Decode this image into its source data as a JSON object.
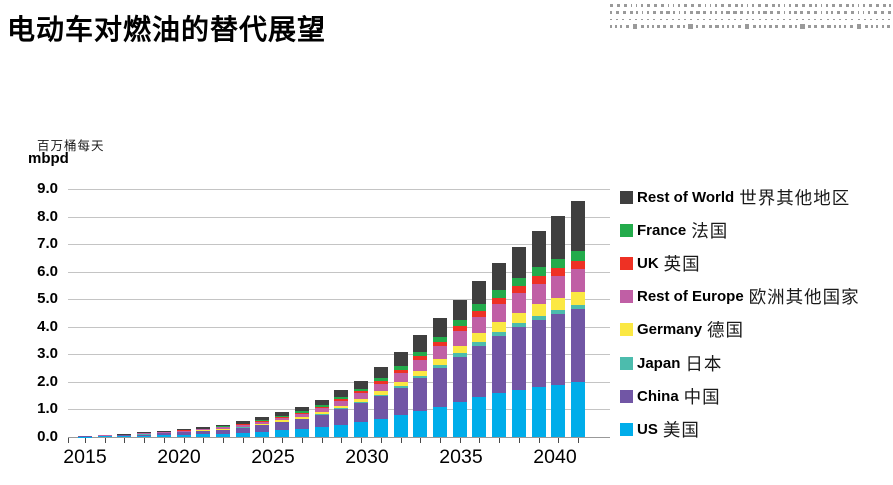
{
  "title": "电动车对燃油的替代展望",
  "y_axis": {
    "unit_cn": "百万桶每天",
    "unit_en": "mbpd",
    "ticks": [
      "9.0",
      "8.0",
      "7.0",
      "6.0",
      "5.0",
      "4.0",
      "3.0",
      "2.0",
      "1.0",
      "0.0"
    ]
  },
  "x_axis": {
    "labels": [
      "2015",
      "2020",
      "2025",
      "2030",
      "2035",
      "2040"
    ]
  },
  "legend": {
    "items": [
      {
        "en": "Rest of World",
        "cn": "世界其他地区",
        "color": "#3F3F3F"
      },
      {
        "en": "France",
        "cn": "法国",
        "color": "#23AB4B"
      },
      {
        "en": "UK",
        "cn": "英国",
        "color": "#EE3124"
      },
      {
        "en": "Rest of Europe",
        "cn": "欧洲其他国家",
        "color": "#C05FA5"
      },
      {
        "en": "Germany",
        "cn": "德国",
        "color": "#FBE843"
      },
      {
        "en": "Japan",
        "cn": "日本",
        "color": "#4CBCAD"
      },
      {
        "en": "China",
        "cn": "中国",
        "color": "#7156A5"
      },
      {
        "en": "US",
        "cn": "美国",
        "color": "#00ADEA"
      }
    ]
  },
  "colors": {
    "gridline": "#c4c4c4",
    "axis_line": "#999999",
    "tick": "#4a4a4a",
    "dots_decoration": "#9a9a9a",
    "text": "#000000"
  },
  "chart_data": {
    "type": "bar",
    "stacked": true,
    "title": "电动车对燃油的替代展望",
    "xlabel": "",
    "ylabel": "mbpd 百万桶每天",
    "ylim": [
      0,
      9.0
    ],
    "ytick_step": 1.0,
    "grid": true,
    "legend_position": "right",
    "x": [
      2015,
      2016,
      2017,
      2018,
      2019,
      2020,
      2021,
      2022,
      2023,
      2024,
      2025,
      2026,
      2027,
      2028,
      2029,
      2030,
      2031,
      2032,
      2033,
      2034,
      2035,
      2036,
      2037,
      2038,
      2039,
      2040
    ],
    "series": [
      {
        "name": "US 美国",
        "name_en": "US",
        "name_cn": "美国",
        "color": "#00ADEA",
        "values": [
          0.01,
          0.02,
          0.03,
          0.04,
          0.06,
          0.08,
          0.1,
          0.12,
          0.15,
          0.19,
          0.24,
          0.29,
          0.36,
          0.45,
          0.55,
          0.66,
          0.79,
          0.94,
          1.1,
          1.28,
          1.44,
          1.58,
          1.7,
          1.81,
          1.9,
          2.0
        ]
      },
      {
        "name": "China 中国",
        "name_en": "China",
        "name_cn": "中国",
        "color": "#7156A5",
        "values": [
          0.01,
          0.02,
          0.03,
          0.05,
          0.07,
          0.09,
          0.11,
          0.14,
          0.18,
          0.23,
          0.29,
          0.35,
          0.44,
          0.55,
          0.67,
          0.82,
          0.99,
          1.19,
          1.4,
          1.63,
          1.86,
          2.08,
          2.28,
          2.44,
          2.57,
          2.66
        ]
      },
      {
        "name": "Japan 日本",
        "name_en": "Japan",
        "name_cn": "日本",
        "color": "#4CBCAD",
        "values": [
          0.0,
          0.0,
          0.0,
          0.01,
          0.01,
          0.01,
          0.01,
          0.01,
          0.02,
          0.02,
          0.02,
          0.03,
          0.03,
          0.04,
          0.05,
          0.06,
          0.07,
          0.09,
          0.11,
          0.13,
          0.15,
          0.15,
          0.15,
          0.15,
          0.14,
          0.14
        ]
      },
      {
        "name": "Germany 德国",
        "name_en": "Germany",
        "name_cn": "德国",
        "color": "#FBE843",
        "values": [
          0.0,
          0.01,
          0.01,
          0.01,
          0.01,
          0.02,
          0.02,
          0.03,
          0.03,
          0.04,
          0.05,
          0.06,
          0.07,
          0.09,
          0.11,
          0.13,
          0.16,
          0.19,
          0.23,
          0.27,
          0.31,
          0.35,
          0.38,
          0.41,
          0.43,
          0.45
        ]
      },
      {
        "name": "Rest of Europe 欧洲其他国家",
        "name_en": "Rest of Europe",
        "name_cn": "欧洲其他国家",
        "color": "#C05FA5",
        "values": [
          0.01,
          0.01,
          0.02,
          0.02,
          0.03,
          0.03,
          0.04,
          0.05,
          0.06,
          0.08,
          0.1,
          0.12,
          0.14,
          0.18,
          0.22,
          0.27,
          0.33,
          0.39,
          0.46,
          0.52,
          0.6,
          0.66,
          0.71,
          0.76,
          0.81,
          0.86
        ]
      },
      {
        "name": "UK 英国",
        "name_en": "UK",
        "name_cn": "英国",
        "color": "#EE3124",
        "values": [
          0.0,
          0.0,
          0.0,
          0.01,
          0.01,
          0.01,
          0.01,
          0.02,
          0.02,
          0.03,
          0.03,
          0.04,
          0.05,
          0.06,
          0.07,
          0.09,
          0.11,
          0.13,
          0.16,
          0.19,
          0.22,
          0.24,
          0.26,
          0.27,
          0.28,
          0.29
        ]
      },
      {
        "name": "France 法国",
        "name_en": "France",
        "name_cn": "法国",
        "color": "#23AB4B",
        "values": [
          0.0,
          0.0,
          0.0,
          0.01,
          0.01,
          0.01,
          0.02,
          0.02,
          0.03,
          0.03,
          0.04,
          0.05,
          0.06,
          0.08,
          0.09,
          0.11,
          0.13,
          0.16,
          0.18,
          0.22,
          0.26,
          0.29,
          0.31,
          0.33,
          0.34,
          0.36
        ]
      },
      {
        "name": "Rest of World 世界其他地区",
        "name_en": "Rest of World",
        "name_cn": "世界其他地区",
        "color": "#3F3F3F",
        "values": [
          0.01,
          0.01,
          0.02,
          0.02,
          0.03,
          0.04,
          0.05,
          0.06,
          0.08,
          0.1,
          0.13,
          0.15,
          0.19,
          0.25,
          0.29,
          0.41,
          0.5,
          0.6,
          0.68,
          0.74,
          0.83,
          0.95,
          1.11,
          1.3,
          1.55,
          1.8
        ]
      }
    ]
  }
}
